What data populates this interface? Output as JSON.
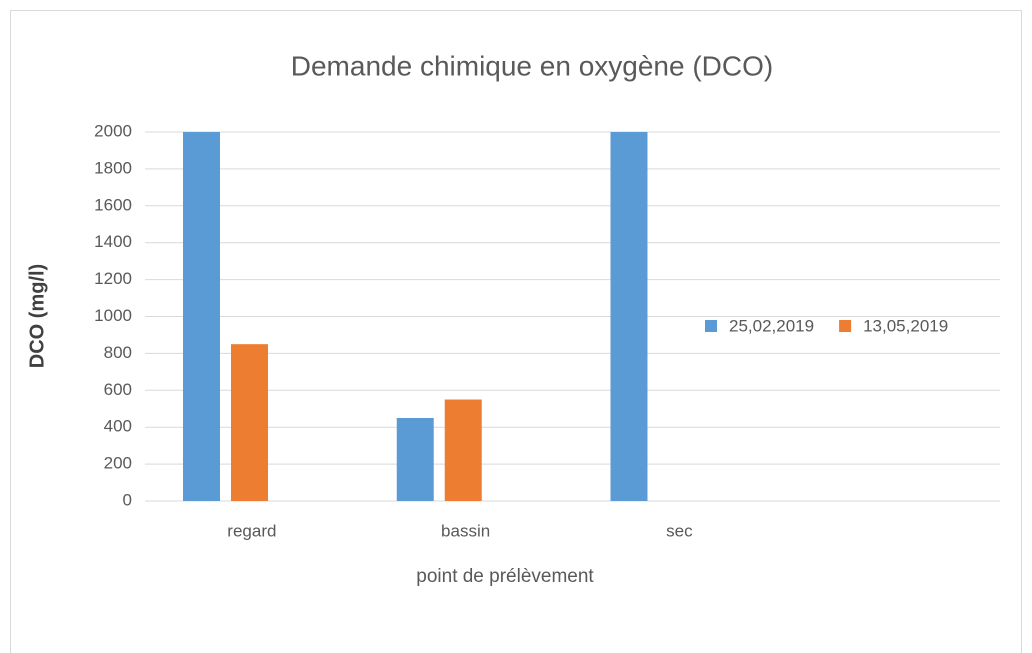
{
  "chart_data": {
    "type": "bar",
    "title": "Demande chimique en oxygène (DCO)",
    "x_label": "point de prélèvement",
    "y_label": "DCO (mg/l)",
    "categories": [
      "regard",
      "bassin",
      "sec",
      null
    ],
    "series": [
      {
        "name": "25,02,2019",
        "color": "#5b9bd5",
        "values": [
          2000,
          450,
          2000,
          null
        ]
      },
      {
        "name": "13,05,2019",
        "color": "#ed7d31",
        "values": [
          850,
          550,
          null,
          null
        ]
      }
    ],
    "ylim": [
      0,
      2000
    ],
    "yticks": [
      0,
      200,
      400,
      600,
      800,
      1000,
      1200,
      1400,
      1600,
      1800,
      2000
    ],
    "grid": true,
    "legend": "right"
  }
}
